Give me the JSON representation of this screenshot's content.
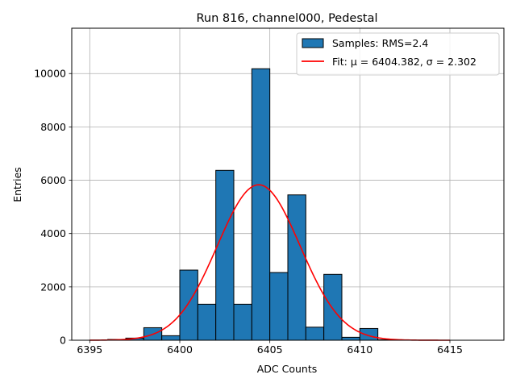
{
  "chart_data": {
    "type": "bar",
    "title": "Run 816, channel000, Pedestal",
    "xlabel": "ADC Counts",
    "ylabel": "Entries",
    "xlim": [
      6394,
      6418
    ],
    "ylim": [
      0,
      11700
    ],
    "xticks": [
      6395,
      6400,
      6405,
      6410,
      6415
    ],
    "yticks": [
      0,
      2000,
      4000,
      6000,
      8000,
      10000
    ],
    "grid": true,
    "legend_position": "top-right",
    "histogram": {
      "name": "Samples: RMS=2.4",
      "color": "#1f77b4",
      "bin_edges": [
        6396,
        6397,
        6398,
        6399,
        6400,
        6401,
        6402,
        6403,
        6404,
        6405,
        6406,
        6407,
        6408,
        6409,
        6410,
        6411,
        6412
      ],
      "values": [
        30,
        80,
        470,
        170,
        2630,
        1350,
        6370,
        1350,
        10180,
        2540,
        5450,
        490,
        2470,
        110,
        440,
        20
      ]
    },
    "fit": {
      "name": "Fit: μ = 6404.382, σ = 2.302",
      "color": "#ff0000",
      "mu": 6404.382,
      "sigma": 2.302,
      "amplitude": 5830,
      "x_range": [
        6395,
        6415
      ]
    }
  }
}
